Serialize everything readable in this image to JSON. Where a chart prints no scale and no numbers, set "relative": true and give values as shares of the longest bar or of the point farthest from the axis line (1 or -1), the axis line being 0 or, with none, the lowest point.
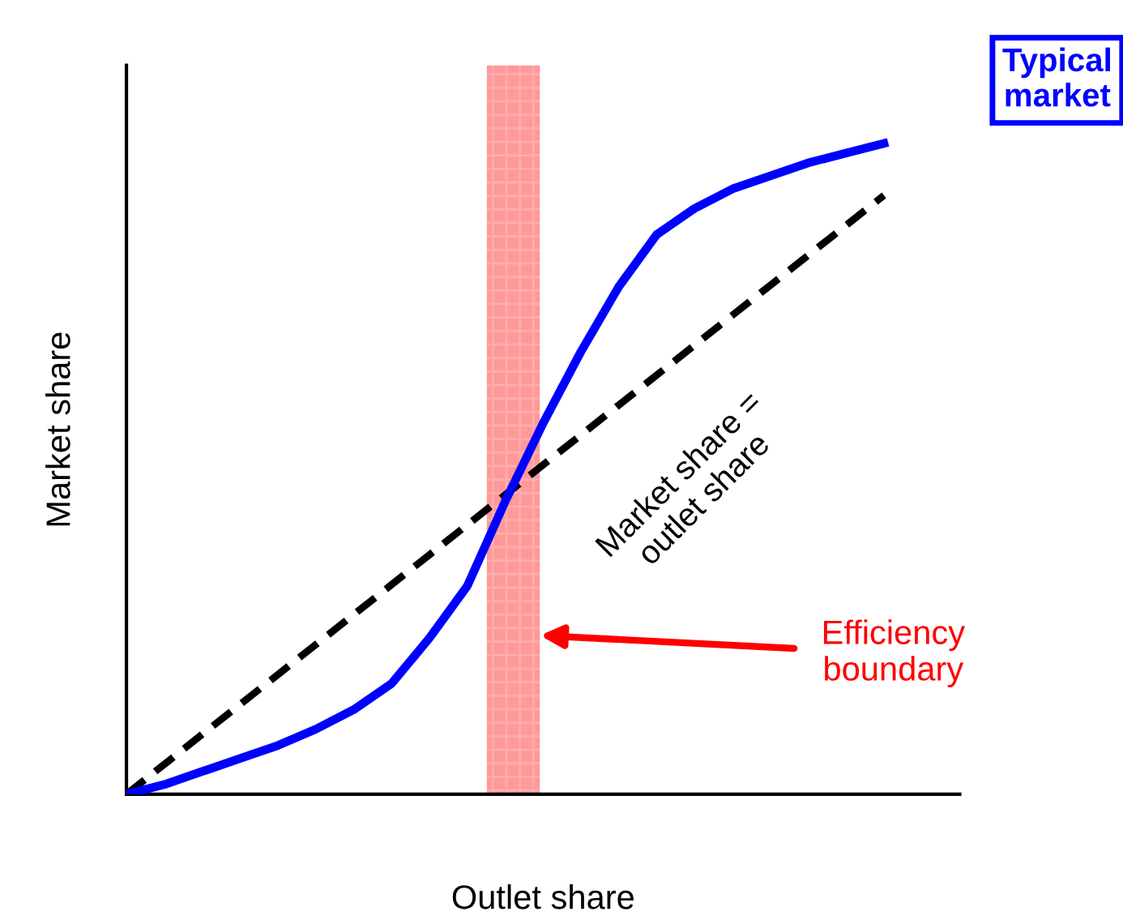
{
  "chart_data": {
    "type": "line",
    "relative": true,
    "xlabel": "Outlet share",
    "ylabel": "Market share",
    "categories": [
      null,
      null,
      null,
      null,
      null,
      null,
      null,
      null,
      null,
      null,
      null,
      null,
      null,
      null,
      null,
      null,
      null,
      null,
      null,
      null,
      null
    ],
    "series": [
      {
        "name": "Typical market",
        "color": "#0000ff",
        "line_style": "solid",
        "values": [
          0,
          0.015,
          0.035,
          0.055,
          0.075,
          0.1,
          0.13,
          0.17,
          0.24,
          0.32,
          0.45,
          0.57,
          0.68,
          0.78,
          0.86,
          0.9,
          0.93,
          0.95,
          0.97,
          0.985,
          1
        ]
      },
      {
        "name": "Market share = outlet share",
        "color": "#000000",
        "line_style": "dashed",
        "values": [
          0,
          0.046,
          0.092,
          0.138,
          0.184,
          0.23,
          0.276,
          0.322,
          0.368,
          0.414,
          0.46,
          0.506,
          0.552,
          0.598,
          0.644,
          0.69,
          0.736,
          0.782,
          0.828,
          0.874,
          0.92
        ]
      }
    ],
    "annotations": [
      "Efficiency boundary"
    ],
    "marker": "none"
  }
}
